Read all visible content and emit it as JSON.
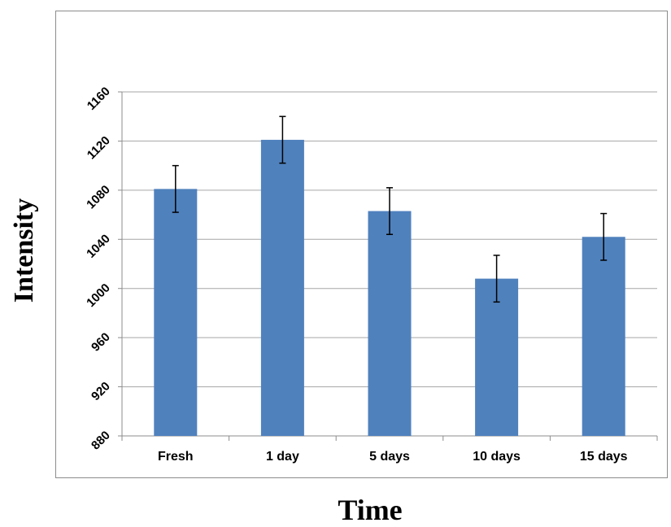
{
  "chart_data": {
    "type": "bar",
    "title": "",
    "xlabel": "Time",
    "ylabel": "Intensity",
    "categories": [
      "Fresh",
      "1 day",
      "5 days",
      "10 days",
      "15 days"
    ],
    "values": [
      1081,
      1121,
      1063,
      1008,
      1042
    ],
    "error_bars": [
      19,
      19,
      19,
      19,
      19
    ],
    "ylim": [
      880,
      1160
    ],
    "yticks": [
      880,
      920,
      960,
      1000,
      1040,
      1080,
      1120,
      1160
    ],
    "grid": true,
    "legend": "none",
    "colors": {
      "bar": "#4f81bd",
      "grid": "#a6a6a6",
      "axis": "#8c8c8c",
      "error": "#000000"
    }
  }
}
